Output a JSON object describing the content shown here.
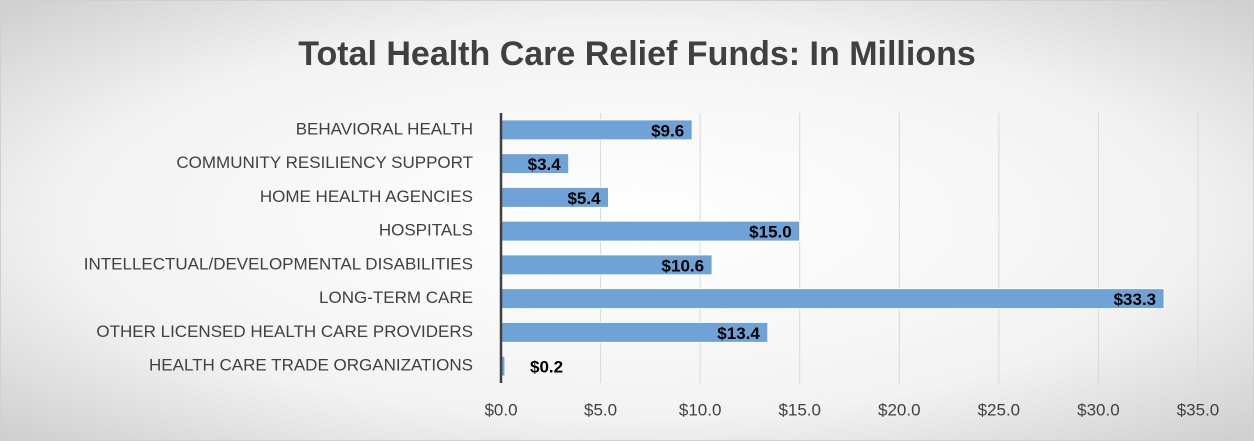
{
  "chart_data": {
    "type": "bar",
    "orientation": "horizontal",
    "title": "Total Health Care Relief Funds: In Millions",
    "categories": [
      "BEHAVIORAL HEALTH",
      "COMMUNITY RESILIENCY SUPPORT",
      "HOME HEALTH AGENCIES",
      "HOSPITALS",
      "INTELLECTUAL/DEVELOPMENTAL DISABILITIES",
      "LONG-TERM CARE",
      "OTHER LICENSED HEALTH CARE PROVIDERS",
      "HEALTH CARE TRADE ORGANIZATIONS"
    ],
    "values": [
      9.6,
      3.4,
      5.4,
      15.0,
      10.6,
      33.3,
      13.4,
      0.2
    ],
    "value_labels": [
      "$9.6",
      "$3.4",
      "$5.4",
      "$15.0",
      "$10.6",
      "$33.3",
      "$13.4",
      "$0.2"
    ],
    "color": "#6fa3d8",
    "xlim": [
      0,
      35
    ],
    "xticks": [
      {
        "value": 0,
        "label": "$0.0"
      },
      {
        "value": 5,
        "label": "$5.0"
      },
      {
        "value": 10,
        "label": "$10.0"
      },
      {
        "value": 15,
        "label": "$15.0"
      },
      {
        "value": 20,
        "label": "$20.0"
      },
      {
        "value": 25,
        "label": "$25.0"
      },
      {
        "value": 30,
        "label": "$30.0"
      },
      {
        "value": 35,
        "label": "$35.0"
      }
    ],
    "grid": true
  }
}
